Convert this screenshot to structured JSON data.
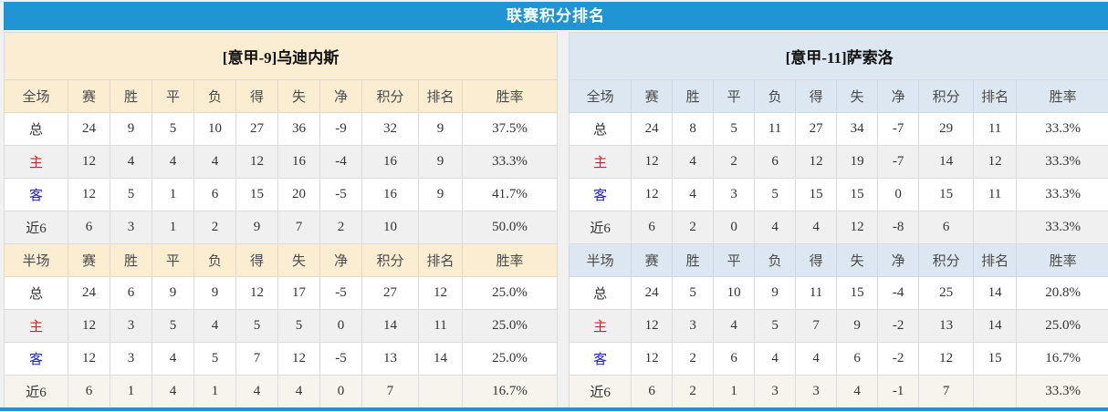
{
  "title": "联赛积分排名",
  "colors": {
    "header_blue": "#1F95D3",
    "left_header_bg": "#FAEDD2",
    "right_header_bg": "#DCE7F1",
    "stripe_gray": "#F0F0F0",
    "warm_row": "#F6F4EC",
    "red": "#E4502E",
    "rank_blue": "#5B8FD0",
    "home_red": "#CB2128",
    "away_blue": "#2121CE"
  },
  "tables": [
    {
      "team_title": "[意甲-9]乌迪内斯",
      "sections": [
        {
          "columns": [
            "全场",
            "赛",
            "胜",
            "平",
            "负",
            "得",
            "失",
            "净",
            "积分",
            "排名",
            "胜率"
          ],
          "rows": [
            {
              "label": "总",
              "type": "total",
              "values": [
                "24",
                "9",
                "5",
                "10",
                "27",
                "36",
                "-9",
                "32",
                "9",
                "37.5%"
              ]
            },
            {
              "label": "主",
              "type": "home",
              "values": [
                "12",
                "4",
                "4",
                "4",
                "12",
                "16",
                "-4",
                "16",
                "9",
                "33.3%"
              ]
            },
            {
              "label": "客",
              "type": "away",
              "values": [
                "12",
                "5",
                "1",
                "6",
                "15",
                "20",
                "-5",
                "16",
                "9",
                "41.7%"
              ]
            },
            {
              "label": "近6",
              "type": "last6",
              "values": [
                "6",
                "3",
                "1",
                "2",
                "9",
                "7",
                "2",
                "10",
                "",
                "50.0%"
              ]
            }
          ]
        },
        {
          "columns": [
            "半场",
            "赛",
            "胜",
            "平",
            "负",
            "得",
            "失",
            "净",
            "积分",
            "排名",
            "胜率"
          ],
          "rows": [
            {
              "label": "总",
              "type": "total",
              "values": [
                "24",
                "6",
                "9",
                "9",
                "12",
                "17",
                "-5",
                "27",
                "12",
                "25.0%"
              ]
            },
            {
              "label": "主",
              "type": "home",
              "values": [
                "12",
                "3",
                "5",
                "4",
                "5",
                "5",
                "0",
                "14",
                "11",
                "25.0%"
              ]
            },
            {
              "label": "客",
              "type": "away",
              "values": [
                "12",
                "3",
                "4",
                "5",
                "7",
                "12",
                "-5",
                "13",
                "14",
                "25.0%"
              ]
            },
            {
              "label": "近6",
              "type": "last6",
              "values": [
                "6",
                "1",
                "4",
                "1",
                "4",
                "4",
                "0",
                "7",
                "",
                "16.7%"
              ]
            }
          ]
        }
      ]
    },
    {
      "team_title": "[意甲-11]萨索洛",
      "sections": [
        {
          "columns": [
            "全场",
            "赛",
            "胜",
            "平",
            "负",
            "得",
            "失",
            "净",
            "积分",
            "排名",
            "胜率"
          ],
          "rows": [
            {
              "label": "总",
              "type": "total",
              "values": [
                "24",
                "8",
                "5",
                "11",
                "27",
                "34",
                "-7",
                "29",
                "11",
                "33.3%"
              ]
            },
            {
              "label": "主",
              "type": "home",
              "values": [
                "12",
                "4",
                "2",
                "6",
                "12",
                "19",
                "-7",
                "14",
                "12",
                "33.3%"
              ]
            },
            {
              "label": "客",
              "type": "away",
              "values": [
                "12",
                "4",
                "3",
                "5",
                "15",
                "15",
                "0",
                "15",
                "11",
                "33.3%"
              ]
            },
            {
              "label": "近6",
              "type": "last6",
              "values": [
                "6",
                "2",
                "0",
                "4",
                "4",
                "12",
                "-8",
                "6",
                "",
                "33.3%"
              ]
            }
          ]
        },
        {
          "columns": [
            "半场",
            "赛",
            "胜",
            "平",
            "负",
            "得",
            "失",
            "净",
            "积分",
            "排名",
            "胜率"
          ],
          "rows": [
            {
              "label": "总",
              "type": "total",
              "values": [
                "24",
                "5",
                "10",
                "9",
                "11",
                "15",
                "-4",
                "25",
                "14",
                "20.8%"
              ]
            },
            {
              "label": "主",
              "type": "home",
              "values": [
                "12",
                "3",
                "4",
                "5",
                "7",
                "9",
                "-2",
                "13",
                "14",
                "25.0%"
              ]
            },
            {
              "label": "客",
              "type": "away",
              "values": [
                "12",
                "2",
                "6",
                "4",
                "4",
                "6",
                "-2",
                "12",
                "15",
                "16.7%"
              ]
            },
            {
              "label": "近6",
              "type": "last6",
              "values": [
                "6",
                "2",
                "1",
                "3",
                "3",
                "4",
                "-1",
                "7",
                "",
                "33.3%"
              ]
            }
          ]
        }
      ]
    }
  ]
}
